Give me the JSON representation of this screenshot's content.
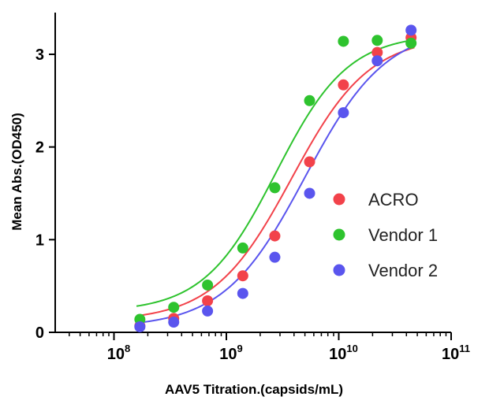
{
  "chart_data": {
    "type": "scatter",
    "title": "",
    "xlabel": "AAV5 Titration.(capsids/mL)",
    "ylabel": "Mean Abs.(OD450)",
    "xscale": "log",
    "xlim": [
      30000000,
      100000000000
    ],
    "ylim": [
      0,
      3.45
    ],
    "x_ticks": [
      {
        "base": "10",
        "exp": "8",
        "value": 100000000
      },
      {
        "base": "10",
        "exp": "9",
        "value": 1000000000
      },
      {
        "base": "10",
        "exp": "10",
        "value": 10000000000
      },
      {
        "base": "10",
        "exp": "11",
        "value": 100000000000
      }
    ],
    "y_ticks": [
      {
        "label": "0",
        "value": 0
      },
      {
        "label": "1",
        "value": 1
      },
      {
        "label": "2",
        "value": 2
      },
      {
        "label": "3",
        "value": 3
      }
    ],
    "x": [
      170000000,
      340000000,
      680000000,
      1400000000,
      2700000000,
      5500000000,
      11000000000,
      22000000000,
      44000000000
    ],
    "legend_position": "center-right",
    "series": [
      {
        "name": "ACRO",
        "color": "#f2424a",
        "values": [
          0.07,
          0.15,
          0.34,
          0.61,
          1.04,
          1.84,
          2.67,
          3.02,
          3.18
        ],
        "fit": {
          "bottom": 0.12,
          "top": 3.2,
          "logEC50": 9.58,
          "hill": 1.25
        }
      },
      {
        "name": "Vendor 1",
        "color": "#2ec32e",
        "values": [
          0.14,
          0.27,
          0.51,
          0.91,
          1.56,
          2.5,
          3.14,
          3.15,
          3.12
        ],
        "fit": {
          "bottom": 0.22,
          "top": 3.22,
          "logEC50": 9.44,
          "hill": 1.35
        }
      },
      {
        "name": "Vendor 2",
        "color": "#5a55ee",
        "values": [
          0.06,
          0.11,
          0.23,
          0.42,
          0.81,
          1.5,
          2.37,
          2.93,
          3.26
        ],
        "fit": {
          "bottom": 0.05,
          "top": 3.3,
          "logEC50": 9.7,
          "hill": 1.2
        }
      }
    ]
  }
}
